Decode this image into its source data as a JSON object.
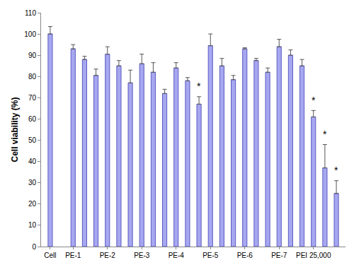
{
  "chart_data": {
    "type": "bar",
    "y_label": "Cell viability (%)",
    "categories": [
      "Cell",
      null,
      "PE-1",
      null,
      null,
      "PE-2",
      null,
      null,
      "PE-3",
      null,
      null,
      "PE-4",
      null,
      null,
      "PE-5",
      null,
      null,
      "PE-6",
      null,
      null,
      "PE-7",
      null,
      null,
      "PEI 25,000",
      null,
      null
    ],
    "values": [
      100,
      null,
      93,
      88,
      80.5,
      90.5,
      85,
      77,
      86,
      82,
      72,
      84,
      78,
      67,
      94.5,
      85,
      78.5,
      93,
      87.5,
      82,
      94,
      90,
      85,
      61,
      37,
      25
    ],
    "error": [
      3.5,
      null,
      2,
      1.5,
      3,
      3.5,
      2.5,
      6,
      4.5,
      4.5,
      2,
      2.5,
      1.5,
      3.5,
      5.5,
      3.5,
      2,
      0.5,
      1,
      2,
      3.5,
      2.5,
      3,
      3,
      11,
      6
    ],
    "color": "#a7a7f0",
    "ylim": [
      0,
      110
    ],
    "yticks": [
      0,
      10,
      20,
      30,
      40,
      50,
      60,
      70,
      80,
      90,
      100,
      110
    ],
    "grid": false,
    "annotations": [
      {
        "x": 13,
        "y": 72,
        "text": "*"
      },
      {
        "x": 23,
        "y": 65.5,
        "text": "*"
      },
      {
        "x": 24,
        "y": 49.5,
        "text": "*"
      },
      {
        "x": 25,
        "y": 32.5,
        "text": "*"
      }
    ]
  }
}
